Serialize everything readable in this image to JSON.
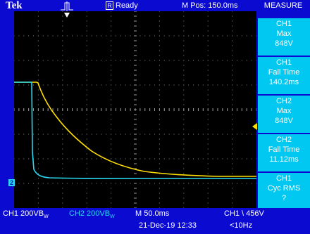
{
  "header": {
    "brand": "Tek",
    "status": "Ready",
    "status_icon": "R",
    "mpos": "M Pos: 150.0ms",
    "measure_title": "MEASURE"
  },
  "measurements": [
    {
      "ch": "CH1",
      "name": "Max",
      "value": "848V"
    },
    {
      "ch": "CH1",
      "name": "Fall Time",
      "value": "140.2ms"
    },
    {
      "ch": "CH2",
      "name": "Max",
      "value": "848V"
    },
    {
      "ch": "CH2",
      "name": "Fall Time",
      "value": "11.12ms"
    },
    {
      "ch": "CH1",
      "name": "Cyc RMS",
      "value": "?"
    }
  ],
  "footer": {
    "ch1_scale": "CH1  200VB",
    "ch2_scale": "CH2  200VB",
    "bw_mark": "W",
    "timebase": "M 50.0ms",
    "trigger": "CH1 \\ 456V",
    "datetime": "21-Dec-19 12:33",
    "freq": "<10Hz"
  },
  "markers": {
    "ground": "2"
  },
  "colors": {
    "ch1": "#ffe000",
    "ch2": "#28d8f0",
    "frame": "#0a0ad0",
    "measure_box": "#00c8f0",
    "grid": "#8a8a8a"
  }
}
